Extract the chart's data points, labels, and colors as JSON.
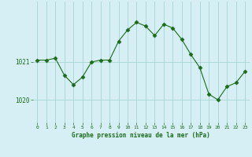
{
  "x": [
    0,
    1,
    2,
    3,
    4,
    5,
    6,
    7,
    8,
    9,
    10,
    11,
    12,
    13,
    14,
    15,
    16,
    17,
    18,
    19,
    20,
    21,
    22,
    23
  ],
  "y": [
    1021.05,
    1021.05,
    1021.1,
    1020.65,
    1020.4,
    1020.6,
    1021.0,
    1021.05,
    1021.05,
    1021.55,
    1021.85,
    1022.05,
    1021.95,
    1021.7,
    1022.0,
    1021.9,
    1021.6,
    1021.2,
    1020.85,
    1020.15,
    1020.0,
    1020.35,
    1020.45,
    1020.75
  ],
  "line_color": "#1a6b1a",
  "marker": "D",
  "marker_size": 2.5,
  "background_color": "#d6eff5",
  "grid_color": "#9ecfcf",
  "xlabel": "Graphe pression niveau de la mer (hPa)",
  "xlabel_color": "#1a6b1a",
  "tick_color": "#1a6b1a",
  "ytick_labels": [
    "1020",
    "1021"
  ],
  "ylim": [
    1019.4,
    1022.6
  ],
  "xlim": [
    -0.5,
    23.5
  ],
  "yticks": [
    1020,
    1021
  ],
  "xticks": [
    0,
    1,
    2,
    3,
    4,
    5,
    6,
    7,
    8,
    9,
    10,
    11,
    12,
    13,
    14,
    15,
    16,
    17,
    18,
    19,
    20,
    21,
    22,
    23
  ],
  "figsize": [
    3.2,
    2.0
  ],
  "dpi": 100
}
